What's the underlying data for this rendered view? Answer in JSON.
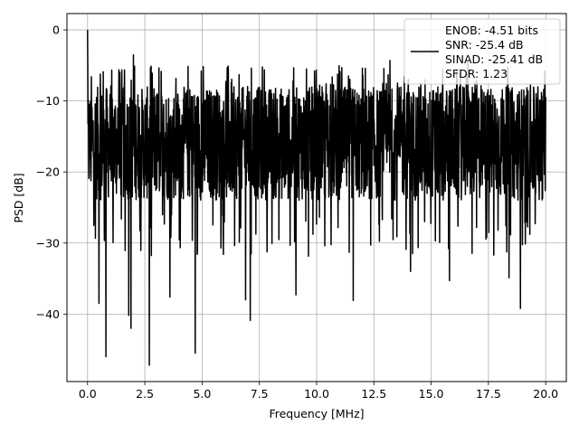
{
  "chart_data": {
    "type": "line",
    "title": "",
    "xlabel": "Frequency [MHz]",
    "ylabel": "PSD [dB]",
    "xlim": [
      -0.9,
      20.9
    ],
    "ylim": [
      -49.5,
      2.3
    ],
    "xticks": [
      0.0,
      2.5,
      5.0,
      7.5,
      10.0,
      12.5,
      15.0,
      17.5,
      20.0
    ],
    "xtick_labels": [
      "0.0",
      "2.5",
      "5.0",
      "7.5",
      "10.0",
      "12.5",
      "15.0",
      "17.5",
      "20.0"
    ],
    "yticks": [
      0,
      -10,
      -20,
      -30,
      -40
    ],
    "ytick_labels": [
      "0",
      "−10",
      "−20",
      "−30",
      "−40"
    ],
    "grid": true,
    "legend_position": "top-right",
    "legend": {
      "lines": [
        "ENOB: -4.51 bits",
        "SNR: -25.4 dB",
        "SINAD: -25.41 dB",
        "SFDR: 1.23"
      ]
    },
    "series": [
      {
        "color": "#000000",
        "x_range": [
          0,
          20
        ],
        "points": 2048,
        "band_center": -16,
        "band_low": -24,
        "band_high": -8,
        "peaks": [
          {
            "x": 0.0,
            "y": 0
          },
          {
            "x": 2.0,
            "y": -3.5
          },
          {
            "x": 6.1,
            "y": -5.3
          },
          {
            "x": 11.1,
            "y": -5.3
          },
          {
            "x": 13.2,
            "y": -4.3
          },
          {
            "x": 16.6,
            "y": -4.5
          }
        ],
        "dips": [
          {
            "x": 0.5,
            "y": -38.5
          },
          {
            "x": 0.8,
            "y": -46.0
          },
          {
            "x": 1.8,
            "y": -40.2
          },
          {
            "x": 1.9,
            "y": -42.0
          },
          {
            "x": 2.7,
            "y": -47.2
          },
          {
            "x": 3.6,
            "y": -37.6
          },
          {
            "x": 4.7,
            "y": -45.5
          },
          {
            "x": 6.9,
            "y": -38.0
          },
          {
            "x": 7.1,
            "y": -40.9
          },
          {
            "x": 9.1,
            "y": -37.3
          },
          {
            "x": 11.6,
            "y": -38.1
          },
          {
            "x": 14.1,
            "y": -34.0
          },
          {
            "x": 15.8,
            "y": -35.3
          },
          {
            "x": 18.4,
            "y": -34.9
          },
          {
            "x": 18.9,
            "y": -39.2
          }
        ]
      }
    ]
  }
}
